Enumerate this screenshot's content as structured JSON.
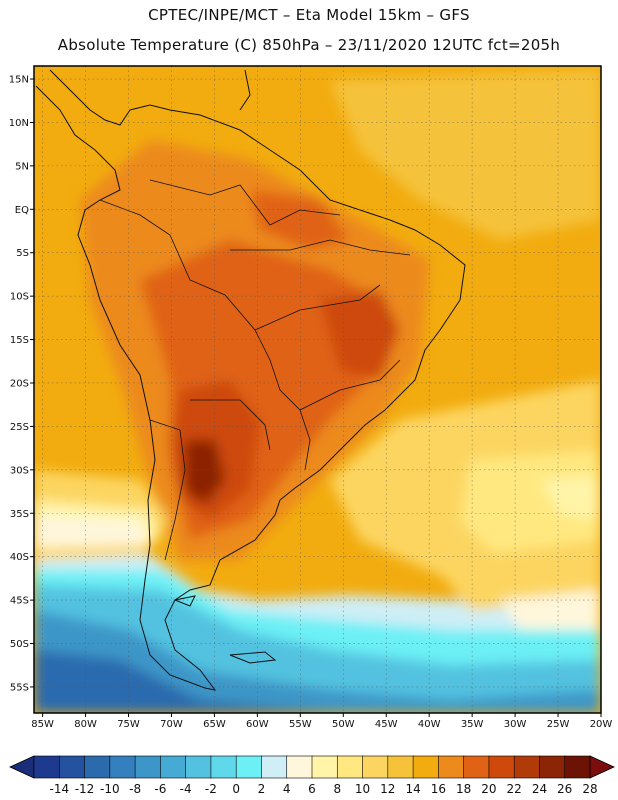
{
  "title": {
    "line1": "CPTEC/INPE/MCT –  Eta Model 15km – GFS",
    "line2": "Absolute Temperature (C) 850hPa – 23/11/2020 12UTC fct=205h"
  },
  "map": {
    "lon_range": [
      -86,
      -20
    ],
    "lat_range": [
      -58,
      16.5
    ],
    "lat_ticks": [
      {
        "value": 15,
        "label": "15N"
      },
      {
        "value": 10,
        "label": "10N"
      },
      {
        "value": 5,
        "label": "5N"
      },
      {
        "value": 0,
        "label": "EQ"
      },
      {
        "value": -5,
        "label": "5S"
      },
      {
        "value": -10,
        "label": "10S"
      },
      {
        "value": -15,
        "label": "15S"
      },
      {
        "value": -20,
        "label": "20S"
      },
      {
        "value": -25,
        "label": "25S"
      },
      {
        "value": -30,
        "label": "30S"
      },
      {
        "value": -35,
        "label": "35S"
      },
      {
        "value": -40,
        "label": "40S"
      },
      {
        "value": -45,
        "label": "45S"
      },
      {
        "value": -50,
        "label": "50S"
      },
      {
        "value": -55,
        "label": "55S"
      }
    ],
    "lon_ticks": [
      {
        "value": -85,
        "label": "85W"
      },
      {
        "value": -80,
        "label": "80W"
      },
      {
        "value": -75,
        "label": "75W"
      },
      {
        "value": -70,
        "label": "70W"
      },
      {
        "value": -65,
        "label": "65W"
      },
      {
        "value": -60,
        "label": "60W"
      },
      {
        "value": -55,
        "label": "55W"
      },
      {
        "value": -50,
        "label": "50W"
      },
      {
        "value": -45,
        "label": "45W"
      },
      {
        "value": -40,
        "label": "40W"
      },
      {
        "value": -35,
        "label": "35W"
      },
      {
        "value": -30,
        "label": "30W"
      },
      {
        "value": -25,
        "label": "25W"
      },
      {
        "value": -20,
        "label": "20W"
      }
    ]
  },
  "colorbar": {
    "labels": [
      "-14",
      "-12",
      "-10",
      "-8",
      "-6",
      "-4",
      "-2",
      "0",
      "2",
      "4",
      "6",
      "8",
      "10",
      "12",
      "14",
      "16",
      "18",
      "20",
      "22",
      "24",
      "26",
      "28"
    ],
    "colors": [
      "#1e3a8f",
      "#24529e",
      "#2c6aae",
      "#347fbd",
      "#3c96c8",
      "#46abd4",
      "#52c2e0",
      "#5ed8ea",
      "#6cf0f5",
      "#cfeef6",
      "#fff7dc",
      "#fff4a8",
      "#ffe880",
      "#fcd560",
      "#f5c23a",
      "#f2ac0f",
      "#ec8a1b",
      "#e06214",
      "#cd4a0c",
      "#b03a08",
      "#8c2406",
      "#6d1306"
    ],
    "under_color": "#1a2d78",
    "over_color": "#7a0e0e"
  }
}
